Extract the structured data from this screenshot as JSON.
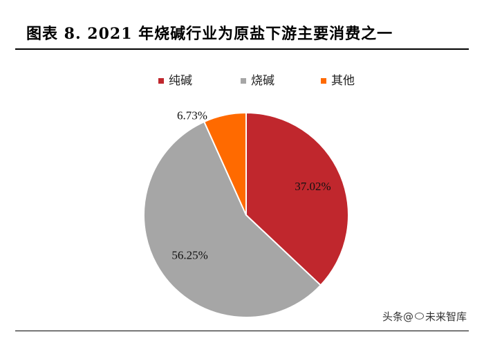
{
  "figure": {
    "title": "图表 8.  2021 年烧碱行业为原盐下游主要消费之一",
    "watermark_prefix": "头条",
    "watermark_at": "@",
    "watermark_name": "未来智库"
  },
  "colors": {
    "chunjian": "#C0272D",
    "shaojian": "#A6A6A6",
    "qita": "#FF6A00"
  },
  "chart_data": {
    "type": "pie",
    "title": "",
    "legend_position": "top",
    "slices": [
      {
        "name": "纯碱",
        "value": 37.02,
        "label": "37.02%",
        "color": "#C0272D"
      },
      {
        "name": "烧碱",
        "value": 56.25,
        "label": "56.25%",
        "color": "#A6A6A6"
      },
      {
        "name": "其他",
        "value": 6.73,
        "label": "6.73%",
        "color": "#FF6A00"
      }
    ]
  }
}
